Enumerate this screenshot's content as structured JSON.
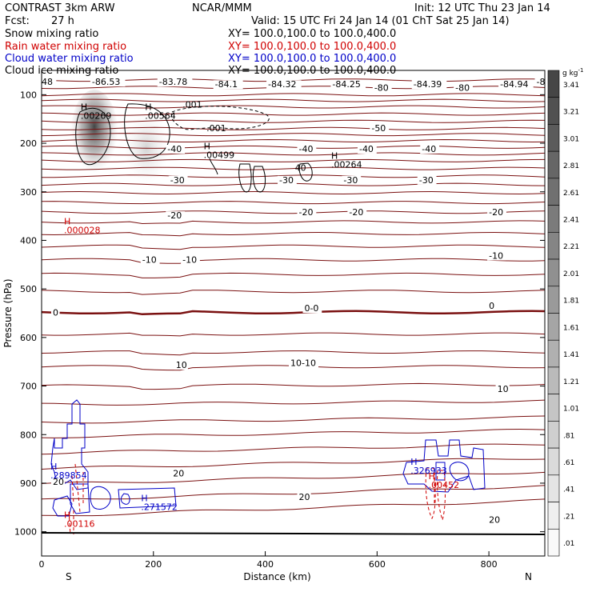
{
  "header": {
    "model": "CONTRAST  3km ARW",
    "center": "NCAR/MMM",
    "init": "Init: 12 UTC Thu 23 Jan 14",
    "fcst_label": "Fcst:",
    "fcst_value": "27 h",
    "valid": "Valid: 15 UTC Fri 24 Jan 14 (01 ChT Sat 25 Jan 14)",
    "fields": [
      {
        "name": "Snow mixing ratio",
        "xy": "XY= 100.0,100.0 to 100.0,400.0",
        "color": "#000000"
      },
      {
        "name": "Rain water mixing ratio",
        "xy": "XY= 100.0,100.0 to 100.0,400.0",
        "color": "#d00000"
      },
      {
        "name": "Cloud water mixing ratio",
        "xy": "XY= 100.0,100.0 to 100.0,400.0",
        "color": "#0000c8"
      },
      {
        "name": "Cloud ice mixing ratio",
        "xy": "XY= 100.0,100.0 to 100.0,400.0",
        "color": "#000000"
      }
    ]
  },
  "chart_data": {
    "type": "contour",
    "xlabel": "Distance (km)",
    "ylabel": "Pressure (hPa)",
    "xlim": [
      0,
      900
    ],
    "ylim": [
      1050,
      50
    ],
    "xticks": [
      0,
      200,
      400,
      600,
      800
    ],
    "yticks": [
      100,
      200,
      300,
      400,
      500,
      600,
      700,
      800,
      900,
      1000
    ],
    "endpoints": {
      "left": "S",
      "right": "N"
    },
    "colorbar": {
      "unit": "g kg",
      "unit_exp": "-1",
      "levels": [
        3.41,
        3.21,
        3.01,
        2.81,
        2.61,
        2.41,
        2.21,
        2.01,
        1.81,
        1.61,
        1.41,
        1.21,
        1.01,
        0.81,
        0.61,
        0.41,
        0.21,
        0.01
      ],
      "labels": [
        "3.41",
        "3.21",
        "3.01",
        "2.81",
        "2.61",
        "2.41",
        "2.21",
        "2.01",
        "1.81",
        "1.61",
        "1.41",
        "1.21",
        "1.01",
        ".81",
        ".61",
        ".41",
        ".21",
        ".01"
      ]
    },
    "temperature_contours": {
      "color": "#7a1010",
      "zero_line_pressure": 548,
      "labels": [
        {
          "text": "-86.53",
          "x": 90,
          "p": 80
        },
        {
          "text": "-83.78",
          "x": 210,
          "p": 80
        },
        {
          "text": "-84.1",
          "x": 310,
          "p": 85
        },
        {
          "text": "-84.32",
          "x": 405,
          "p": 85
        },
        {
          "text": "-84.25",
          "x": 520,
          "p": 85
        },
        {
          "text": "-80",
          "x": 595,
          "p": 92
        },
        {
          "text": "-84.39",
          "x": 665,
          "p": 85
        },
        {
          "text": "-80",
          "x": 740,
          "p": 92
        },
        {
          "text": "-84.94",
          "x": 820,
          "p": 85
        },
        {
          "text": "-85",
          "x": 885,
          "p": 80
        },
        {
          "text": ".48",
          "x": -5,
          "p": 80
        },
        {
          "text": "-50",
          "x": 590,
          "p": 175
        },
        {
          "text": "-40",
          "x": 225,
          "p": 218
        },
        {
          "text": "-40",
          "x": 460,
          "p": 218
        },
        {
          "text": "-40",
          "x": 568,
          "p": 218
        },
        {
          "text": "-40",
          "x": 680,
          "p": 218
        },
        {
          "text": "-30",
          "x": 230,
          "p": 282
        },
        {
          "text": "-30",
          "x": 425,
          "p": 282
        },
        {
          "text": "-30",
          "x": 540,
          "p": 282
        },
        {
          "text": "-30",
          "x": 675,
          "p": 282
        },
        {
          "text": "-20",
          "x": 225,
          "p": 355
        },
        {
          "text": "-20",
          "x": 460,
          "p": 348
        },
        {
          "text": "-20",
          "x": 550,
          "p": 348
        },
        {
          "text": "-20",
          "x": 800,
          "p": 348
        },
        {
          "text": "-10",
          "x": 180,
          "p": 446
        },
        {
          "text": "-10",
          "x": 252,
          "p": 446
        },
        {
          "text": "-10",
          "x": 800,
          "p": 438
        },
        {
          "text": "0",
          "x": 20,
          "p": 555
        },
        {
          "text": "0-0",
          "x": 470,
          "p": 546
        },
        {
          "text": "0",
          "x": 800,
          "p": 541
        },
        {
          "text": "10-10",
          "x": 445,
          "p": 659
        },
        {
          "text": "10",
          "x": 240,
          "p": 663
        },
        {
          "text": "10",
          "x": 815,
          "p": 712
        },
        {
          "text": "20",
          "x": 20,
          "p": 903
        },
        {
          "text": "20",
          "x": 235,
          "p": 886
        },
        {
          "text": "20",
          "x": 460,
          "p": 935
        },
        {
          "text": "20",
          "x": 800,
          "p": 982
        }
      ],
      "isotherm_pressures": [
        70,
        85,
        100,
        112,
        125,
        140,
        155,
        170,
        182,
        195,
        208,
        222,
        236,
        252,
        268,
        285,
        302,
        322,
        342,
        362,
        386,
        412,
        440,
        470,
        505,
        548,
        593,
        630,
        660,
        700,
        738,
        775,
        805,
        838,
        870,
        902,
        935,
        968
      ]
    },
    "highs": [
      {
        "label": ".00269",
        "x": 70,
        "p": 150,
        "color": "#000000"
      },
      {
        "label": ".00564",
        "x": 185,
        "p": 150,
        "color": "#000000"
      },
      {
        "label": ".00499",
        "x": 290,
        "p": 230,
        "color": "#000000"
      },
      {
        "label": ".00264",
        "x": 518,
        "p": 250,
        "color": "#000000"
      },
      {
        "label": ".000028",
        "x": 40,
        "p": 385,
        "color": "#d00000"
      },
      {
        "label": ".289854",
        "x": 16,
        "p": 890,
        "color": "#0000c8"
      },
      {
        "label": ".271572",
        "x": 178,
        "p": 955,
        "color": "#0000c8"
      },
      {
        "label": ".326933",
        "x": 660,
        "p": 880,
        "color": "#0000c8"
      },
      {
        "label": ".00116",
        "x": 40,
        "p": 990,
        "color": "#d00000"
      },
      {
        "label": ".00452",
        "x": 692,
        "p": 910,
        "color": "#d00000"
      }
    ],
    "ice_contour_labels": [
      {
        "text": ".001",
        "x": 252,
        "p": 127
      },
      {
        "text": ".001",
        "x": 295,
        "p": 175
      },
      {
        "text": "40",
        "x": 453,
        "p": 257
      }
    ]
  }
}
